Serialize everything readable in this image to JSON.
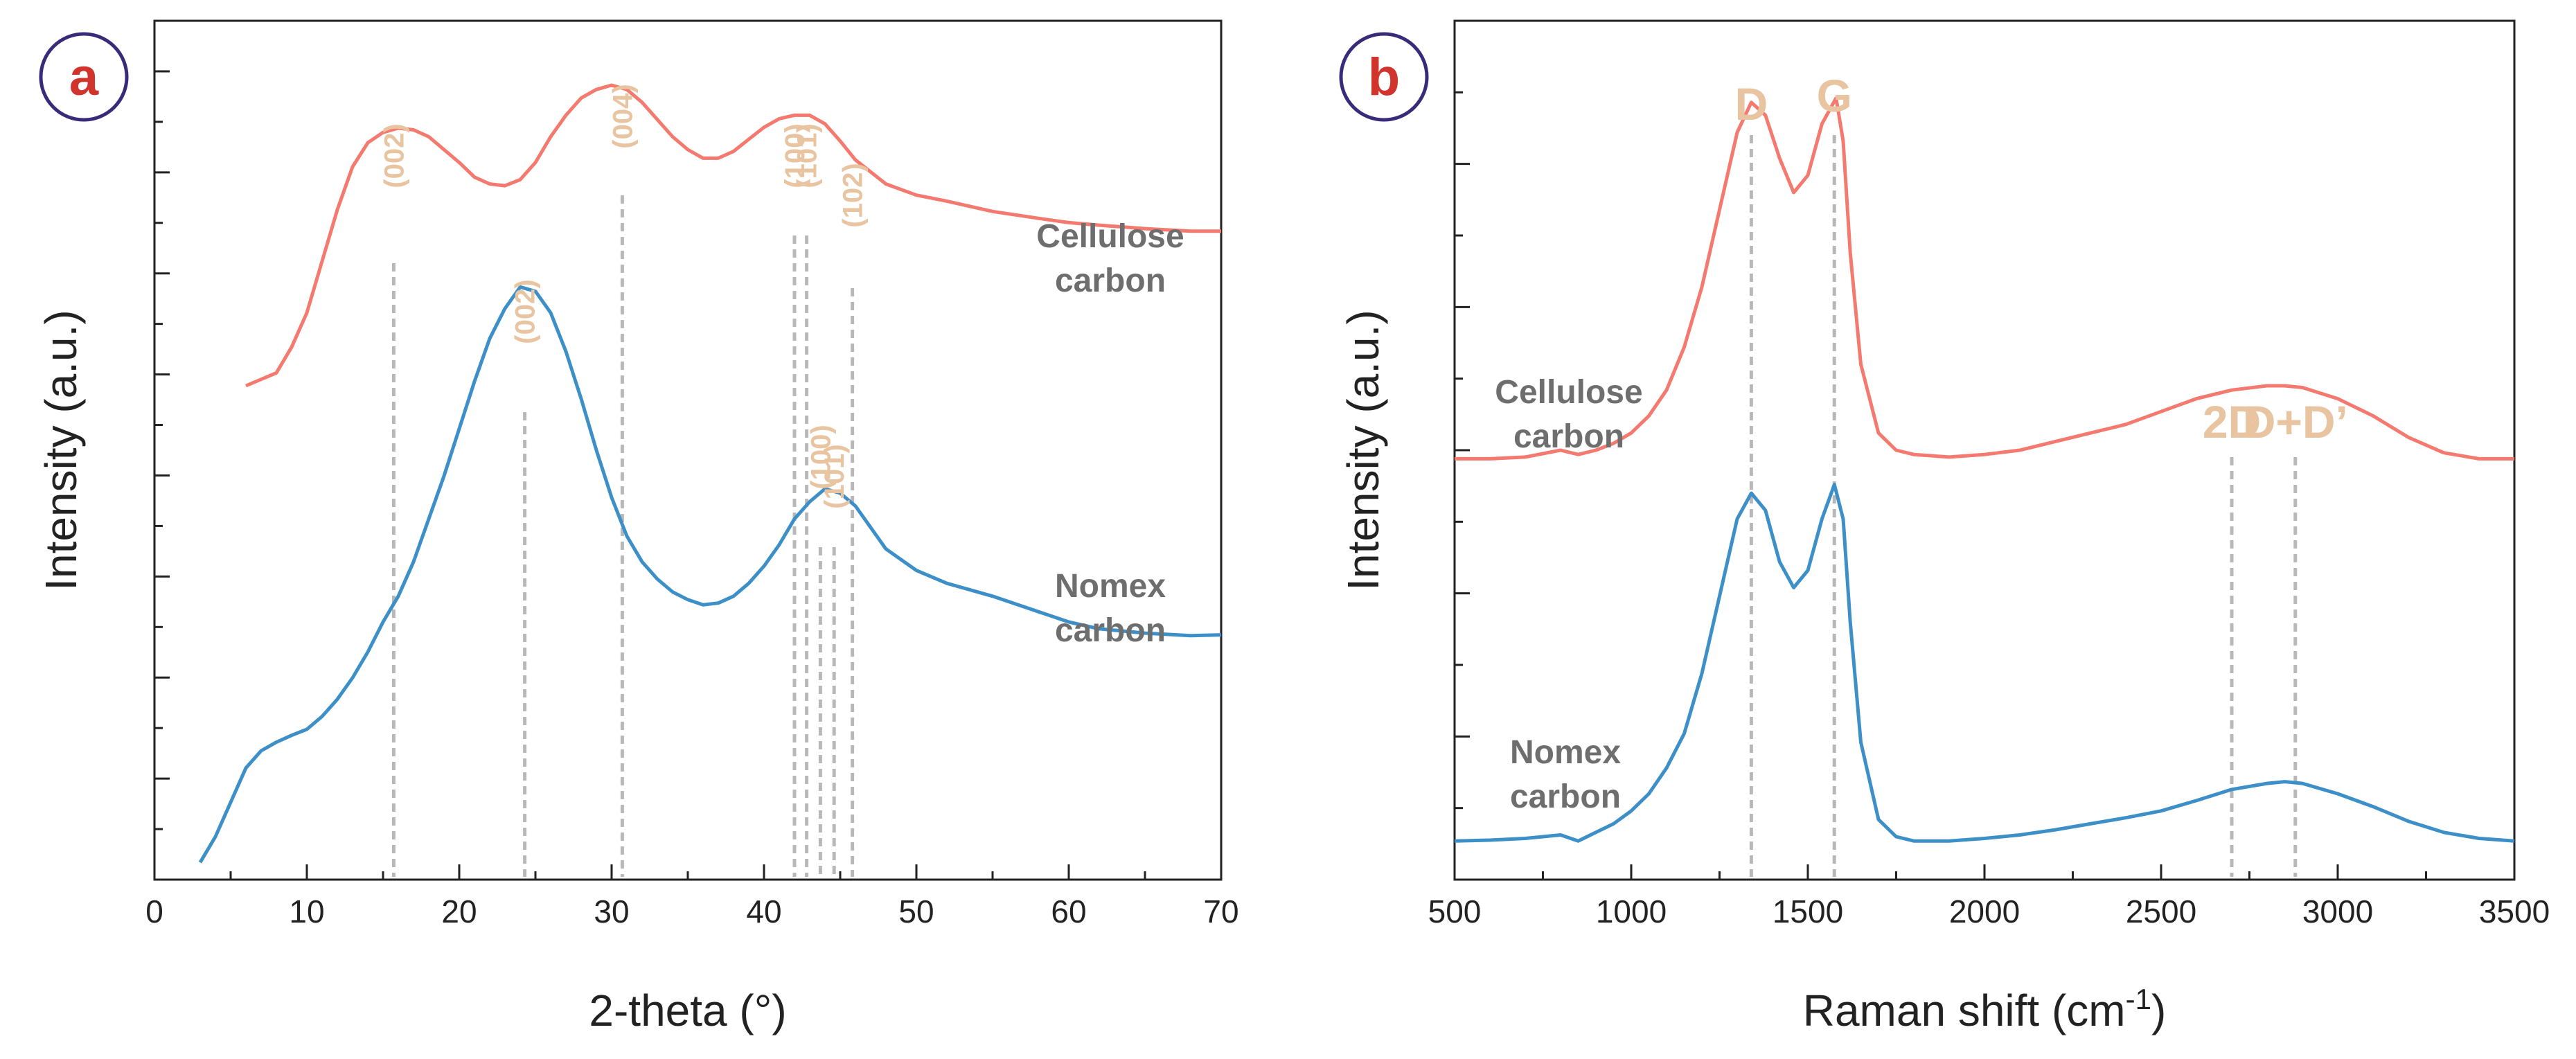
{
  "chart_data": [
    {
      "type": "line",
      "panel_label": "a",
      "xlabel": "2-theta (°)",
      "ylabel": "Intensity (a.u.)",
      "xlim": [
        0,
        70
      ],
      "ylim": [
        0,
        1
      ],
      "xticks": [
        "0",
        "10",
        "20",
        "30",
        "40",
        "50",
        "60",
        "70"
      ],
      "grid": false,
      "series": [
        {
          "name": "Cellulose carbon",
          "label_lines": [
            "Cellulose",
            "carbon"
          ],
          "color": "#f47a70",
          "x": [
            6,
            8,
            9,
            10,
            11,
            12,
            13,
            14,
            15,
            16,
            17,
            18,
            19,
            20,
            21,
            22,
            23,
            24,
            25,
            26,
            27,
            28,
            29,
            30,
            31,
            32,
            33,
            34,
            35,
            36,
            37,
            38,
            39,
            40,
            41,
            42,
            43,
            44,
            45,
            46,
            48,
            50,
            52,
            55,
            58,
            60,
            62,
            65,
            68,
            70
          ],
          "y": [
            0.575,
            0.59,
            0.62,
            0.66,
            0.72,
            0.78,
            0.83,
            0.858,
            0.87,
            0.875,
            0.873,
            0.865,
            0.85,
            0.835,
            0.818,
            0.81,
            0.808,
            0.815,
            0.835,
            0.865,
            0.89,
            0.91,
            0.92,
            0.925,
            0.92,
            0.905,
            0.885,
            0.865,
            0.85,
            0.84,
            0.84,
            0.848,
            0.862,
            0.876,
            0.886,
            0.89,
            0.89,
            0.88,
            0.86,
            0.838,
            0.81,
            0.797,
            0.79,
            0.778,
            0.77,
            0.765,
            0.762,
            0.758,
            0.755,
            0.755
          ]
        },
        {
          "name": "Nomex carbon",
          "label_lines": [
            "Nomex",
            "carbon"
          ],
          "color": "#3d8fc8",
          "x": [
            3,
            4,
            5,
            6,
            7,
            8,
            9,
            10,
            11,
            12,
            13,
            14,
            15,
            16,
            17,
            18,
            19,
            20,
            21,
            22,
            23,
            24,
            25,
            26,
            27,
            28,
            29,
            30,
            31,
            32,
            33,
            34,
            35,
            36,
            37,
            38,
            39,
            40,
            41,
            42,
            43,
            44,
            45,
            46,
            47,
            48,
            50,
            52,
            55,
            58,
            60,
            62,
            65,
            68,
            70
          ],
          "y": [
            0.02,
            0.05,
            0.09,
            0.13,
            0.15,
            0.16,
            0.168,
            0.175,
            0.19,
            0.21,
            0.235,
            0.265,
            0.3,
            0.33,
            0.37,
            0.42,
            0.47,
            0.525,
            0.58,
            0.63,
            0.665,
            0.69,
            0.685,
            0.66,
            0.615,
            0.56,
            0.5,
            0.445,
            0.4,
            0.37,
            0.35,
            0.335,
            0.326,
            0.32,
            0.322,
            0.33,
            0.345,
            0.365,
            0.39,
            0.42,
            0.44,
            0.455,
            0.45,
            0.435,
            0.41,
            0.385,
            0.36,
            0.345,
            0.33,
            0.312,
            0.3,
            0.292,
            0.287,
            0.284,
            0.285
          ]
        }
      ],
      "peak_markers": [
        {
          "label": "(002)",
          "x": 15.7
        },
        {
          "label": "(004)",
          "x": 30.7
        },
        {
          "label": "(100)",
          "x": 42.0
        },
        {
          "label": "(101)",
          "x": 42.8
        },
        {
          "label": "(102)",
          "x": 45.8
        },
        {
          "label": "(002)",
          "x": 24.3
        },
        {
          "label": "(100)",
          "x": 43.7
        },
        {
          "label": "(101)",
          "x": 44.6
        }
      ]
    },
    {
      "type": "line",
      "panel_label": "b",
      "xlabel": "Raman shift (cm",
      "xlabel_sup": "-1",
      "xlabel_end": ")",
      "ylabel": "Intensity (a.u.)",
      "xlim": [
        500,
        3500
      ],
      "ylim": [
        0,
        1
      ],
      "xticks": [
        "500",
        "1000",
        "1500",
        "2000",
        "2500",
        "3000",
        "3500"
      ],
      "grid": false,
      "series": [
        {
          "name": "Cellulose carbon",
          "label_lines": [
            "Cellulose",
            "carbon"
          ],
          "color": "#f47a70",
          "x": [
            500,
            600,
            700,
            800,
            850,
            900,
            950,
            1000,
            1050,
            1100,
            1150,
            1200,
            1250,
            1300,
            1340,
            1380,
            1420,
            1460,
            1500,
            1540,
            1580,
            1600,
            1620,
            1650,
            1700,
            1750,
            1800,
            1900,
            2000,
            2100,
            2200,
            2300,
            2400,
            2500,
            2600,
            2700,
            2800,
            2850,
            2900,
            3000,
            3100,
            3200,
            3300,
            3400,
            3500
          ],
          "y": [
            0.49,
            0.49,
            0.492,
            0.5,
            0.495,
            0.5,
            0.508,
            0.52,
            0.54,
            0.57,
            0.62,
            0.69,
            0.78,
            0.87,
            0.905,
            0.89,
            0.84,
            0.8,
            0.82,
            0.88,
            0.91,
            0.86,
            0.73,
            0.6,
            0.52,
            0.5,
            0.495,
            0.492,
            0.495,
            0.5,
            0.51,
            0.52,
            0.53,
            0.545,
            0.56,
            0.57,
            0.575,
            0.575,
            0.573,
            0.56,
            0.54,
            0.515,
            0.497,
            0.49,
            0.49
          ]
        },
        {
          "name": "Nomex carbon",
          "label_lines": [
            "Nomex",
            "carbon"
          ],
          "color": "#3d8fc8",
          "x": [
            500,
            600,
            700,
            800,
            850,
            900,
            950,
            1000,
            1050,
            1100,
            1150,
            1200,
            1250,
            1300,
            1340,
            1380,
            1420,
            1460,
            1500,
            1540,
            1575,
            1600,
            1620,
            1650,
            1700,
            1750,
            1800,
            1900,
            2000,
            2100,
            2200,
            2300,
            2400,
            2500,
            2600,
            2700,
            2800,
            2850,
            2900,
            3000,
            3100,
            3200,
            3300,
            3400,
            3500
          ],
          "y": [
            0.045,
            0.046,
            0.048,
            0.052,
            0.045,
            0.055,
            0.065,
            0.08,
            0.1,
            0.13,
            0.17,
            0.24,
            0.33,
            0.42,
            0.45,
            0.43,
            0.37,
            0.34,
            0.36,
            0.42,
            0.46,
            0.42,
            0.3,
            0.16,
            0.07,
            0.05,
            0.045,
            0.045,
            0.048,
            0.052,
            0.058,
            0.065,
            0.072,
            0.08,
            0.092,
            0.105,
            0.112,
            0.114,
            0.112,
            0.1,
            0.085,
            0.068,
            0.055,
            0.048,
            0.045
          ]
        }
      ],
      "peak_markers": [
        {
          "label": "D",
          "x": 1340
        },
        {
          "label": "G",
          "x": 1575
        },
        {
          "label": "2D",
          "x": 2700
        },
        {
          "label": "D+D’",
          "x": 2880
        }
      ]
    }
  ]
}
